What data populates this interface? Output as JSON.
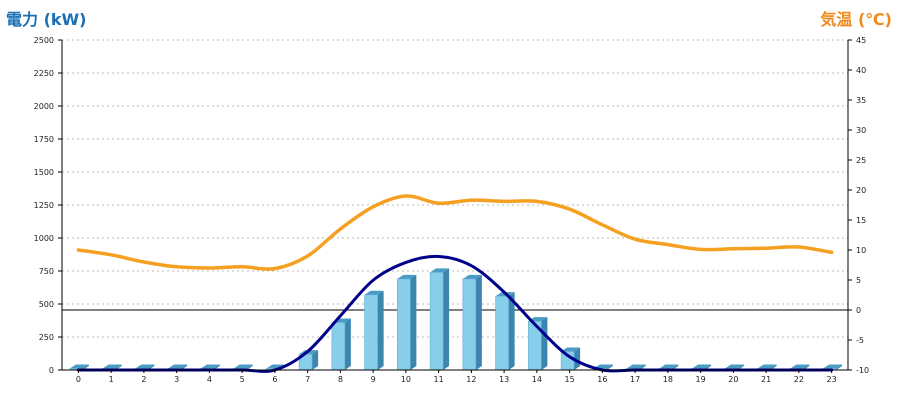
{
  "chart_data": {
    "type": "bar+line",
    "left_axis": {
      "label": "電力 (kW)",
      "color": "#1a6fb5",
      "ylim": [
        0,
        2500
      ],
      "ticks": [
        0,
        250,
        500,
        750,
        1000,
        1250,
        1500,
        1750,
        2000,
        2250,
        2500
      ]
    },
    "right_axis": {
      "label": "気温 (℃)",
      "color": "#f08a1c",
      "ylim": [
        -10,
        45
      ],
      "ticks": [
        -10,
        -5,
        0,
        5,
        10,
        15,
        20,
        25,
        30,
        35,
        40,
        45
      ]
    },
    "categories": [
      "0",
      "1",
      "2",
      "3",
      "4",
      "5",
      "6",
      "7",
      "8",
      "9",
      "10",
      "11",
      "12",
      "13",
      "14",
      "15",
      "16",
      "17",
      "18",
      "19",
      "20",
      "21",
      "22",
      "23"
    ],
    "series": [
      {
        "kind": "bar",
        "axis": "left",
        "color": "#87ceeb",
        "values": [
          0,
          0,
          0,
          0,
          0,
          0,
          0,
          120,
          360,
          570,
          690,
          740,
          690,
          560,
          370,
          140,
          0,
          0,
          0,
          0,
          0,
          0,
          0,
          0
        ]
      },
      {
        "kind": "line",
        "axis": "left",
        "color": "#00008b",
        "values": [
          0,
          0,
          0,
          0,
          0,
          0,
          0,
          140,
          410,
          680,
          815,
          860,
          790,
          590,
          330,
          100,
          0,
          0,
          0,
          0,
          0,
          0,
          0,
          0
        ]
      },
      {
        "kind": "line",
        "axis": "right",
        "color": "#f5a020",
        "values": [
          10,
          9.2,
          8,
          7.2,
          7,
          7.2,
          6.9,
          9,
          13.5,
          17.2,
          19,
          17.8,
          18.3,
          18.1,
          18.1,
          16.8,
          14.2,
          11.8,
          10.9,
          10.1,
          10.2,
          10.3,
          10.5,
          9.6
        ]
      }
    ],
    "grid": "horizontal-dotted"
  }
}
